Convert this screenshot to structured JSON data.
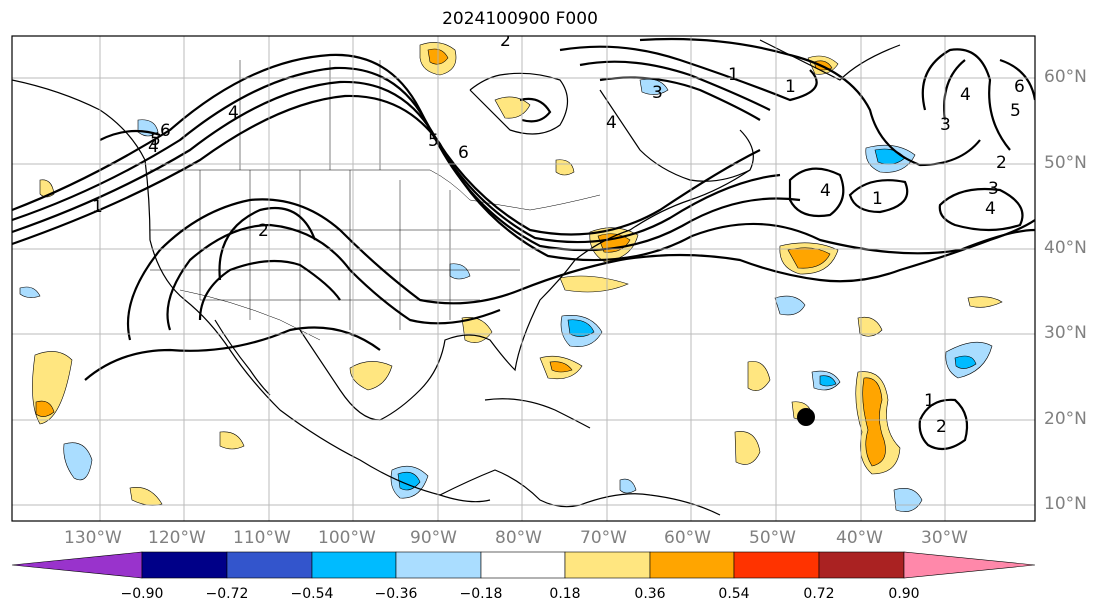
{
  "title": "2024100900 F000",
  "longitude_labels": [
    "130°W",
    "120°W",
    "110°W",
    "100°W",
    "90°W",
    "80°W",
    "70°W",
    "60°W",
    "50°W",
    "40°W",
    "30°W"
  ],
  "latitude_labels": [
    "60°N",
    "50°N",
    "40°N",
    "30°N",
    "20°N",
    "10°N"
  ],
  "colorbar": {
    "colors": [
      "#9933cc",
      "#000088",
      "#3355cc",
      "#00bbff",
      "#aaddff",
      "#ffffff",
      "#ffe680",
      "#ffa500",
      "#ff3300",
      "#aa2222",
      "#ff88aa"
    ],
    "labels": [
      "−0.90",
      "−0.72",
      "−0.54",
      "−0.36",
      "−0.18",
      "0.18",
      "0.36",
      "0.54",
      "0.72",
      "0.90"
    ]
  },
  "contour_labels": [
    "1",
    "4",
    "5",
    "6",
    "4",
    "5",
    "6",
    "2",
    "4",
    "2",
    "3",
    "1",
    "1",
    "4",
    "2",
    "1",
    "3",
    "4",
    "1",
    "2",
    "3",
    "4",
    "5",
    "6"
  ],
  "marker": {
    "label": "storm-position-marker"
  }
}
